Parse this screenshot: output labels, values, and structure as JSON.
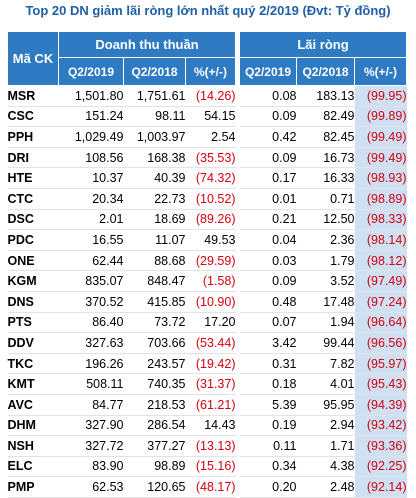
{
  "title": "Top 20 DN giảm lãi ròng lớn nhất quý 2/2019 (Đvt: Tỷ đồng)",
  "headers": {
    "code": "Mã CK",
    "revenue_group": "Doanh thu thuần",
    "profit_group": "Lãi ròng",
    "rev_q2_2019": "Q2/2019",
    "rev_q2_2018": "Q2/2018",
    "rev_pct": "%(+/-)",
    "prof_q2_2019": "Q2/2019",
    "prof_q2_2018": "Q2/2018",
    "prof_pct": "%(+/-)"
  },
  "rows": [
    {
      "code": "MSR",
      "rev2019": "1,501.80",
      "rev2018": "1,751.61",
      "revpct": "(14.26)",
      "prof2019": "0.08",
      "prof2018": "183.13",
      "profpct": "(99.95)"
    },
    {
      "code": "CSC",
      "rev2019": "151.24",
      "rev2018": "98.11",
      "revpct": "54.15",
      "prof2019": "0.09",
      "prof2018": "82.49",
      "profpct": "(99.89)"
    },
    {
      "code": "PPH",
      "rev2019": "1,029.49",
      "rev2018": "1,003.97",
      "revpct": "2.54",
      "prof2019": "0.42",
      "prof2018": "82.45",
      "profpct": "(99.49)"
    },
    {
      "code": "DRI",
      "rev2019": "108.56",
      "rev2018": "168.38",
      "revpct": "(35.53)",
      "prof2019": "0.09",
      "prof2018": "16.73",
      "profpct": "(99.49)"
    },
    {
      "code": "HTE",
      "rev2019": "10.37",
      "rev2018": "40.39",
      "revpct": "(74.32)",
      "prof2019": "0.17",
      "prof2018": "16.33",
      "profpct": "(98.93)"
    },
    {
      "code": "CTC",
      "rev2019": "20.34",
      "rev2018": "22.73",
      "revpct": "(10.52)",
      "prof2019": "0.01",
      "prof2018": "0.71",
      "profpct": "(98.89)"
    },
    {
      "code": "DSC",
      "rev2019": "2.01",
      "rev2018": "18.69",
      "revpct": "(89.26)",
      "prof2019": "0.21",
      "prof2018": "12.50",
      "profpct": "(98.33)"
    },
    {
      "code": "PDC",
      "rev2019": "16.55",
      "rev2018": "11.07",
      "revpct": "49.53",
      "prof2019": "0.04",
      "prof2018": "2.36",
      "profpct": "(98.14)"
    },
    {
      "code": "ONE",
      "rev2019": "62.44",
      "rev2018": "88.68",
      "revpct": "(29.59)",
      "prof2019": "0.03",
      "prof2018": "1.79",
      "profpct": "(98.12)"
    },
    {
      "code": "KGM",
      "rev2019": "835.07",
      "rev2018": "848.47",
      "revpct": "(1.58)",
      "prof2019": "0.09",
      "prof2018": "3.52",
      "profpct": "(97.49)"
    },
    {
      "code": "DNS",
      "rev2019": "370.52",
      "rev2018": "415.85",
      "revpct": "(10.90)",
      "prof2019": "0.48",
      "prof2018": "17.48",
      "profpct": "(97.24)"
    },
    {
      "code": "PTS",
      "rev2019": "86.40",
      "rev2018": "73.72",
      "revpct": "17.20",
      "prof2019": "0.07",
      "prof2018": "1.94",
      "profpct": "(96.64)"
    },
    {
      "code": "DDV",
      "rev2019": "327.63",
      "rev2018": "703.66",
      "revpct": "(53.44)",
      "prof2019": "3.42",
      "prof2018": "99.44",
      "profpct": "(96.56)"
    },
    {
      "code": "TKC",
      "rev2019": "196.26",
      "rev2018": "243.57",
      "revpct": "(19.42)",
      "prof2019": "0.31",
      "prof2018": "7.82",
      "profpct": "(95.97)"
    },
    {
      "code": "KMT",
      "rev2019": "508.11",
      "rev2018": "740.35",
      "revpct": "(31.37)",
      "prof2019": "0.18",
      "prof2018": "4.01",
      "profpct": "(95.43)"
    },
    {
      "code": "AVC",
      "rev2019": "84.77",
      "rev2018": "218.53",
      "revpct": "(61.21)",
      "prof2019": "5.39",
      "prof2018": "95.95",
      "profpct": "(94.39)"
    },
    {
      "code": "DHM",
      "rev2019": "327.90",
      "rev2018": "286.54",
      "revpct": "14.43",
      "prof2019": "0.19",
      "prof2018": "2.94",
      "profpct": "(93.42)"
    },
    {
      "code": "NSH",
      "rev2019": "327.72",
      "rev2018": "377.27",
      "revpct": "(13.13)",
      "prof2019": "0.11",
      "prof2018": "1.71",
      "profpct": "(93.36)"
    },
    {
      "code": "ELC",
      "rev2019": "83.90",
      "rev2018": "98.89",
      "revpct": "(15.16)",
      "prof2019": "0.34",
      "prof2018": "4.38",
      "profpct": "(92.25)"
    },
    {
      "code": "PMP",
      "rev2019": "62.53",
      "rev2018": "120.65",
      "revpct": "(48.17)",
      "prof2019": "0.20",
      "prof2018": "2.48",
      "profpct": "(92.14)"
    }
  ],
  "colors": {
    "title": "#1f5fa8",
    "header_bg": "#2e7bc4",
    "negative": "#d4000f",
    "pct_bg": "#cfe0f3"
  }
}
